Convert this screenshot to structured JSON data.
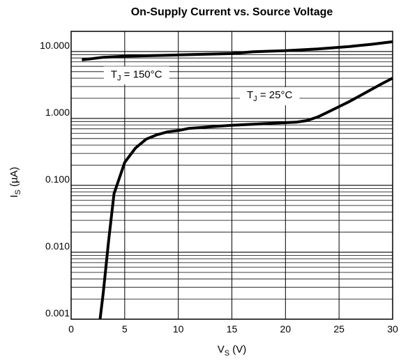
{
  "chart_data": {
    "type": "line",
    "title": "On-Supply Current vs. Source Voltage",
    "xlabel": {
      "main": "V",
      "sub": "S",
      "unit": " (V)"
    },
    "ylabel": {
      "main": "I",
      "sub": "S",
      "unit": " (µA)"
    },
    "xlim": [
      0,
      30
    ],
    "ylim": [
      0.001,
      20
    ],
    "yscale": "log",
    "grid": true,
    "x_ticks": [
      {
        "value": 0,
        "label": "0"
      },
      {
        "value": 5,
        "label": "5"
      },
      {
        "value": 10,
        "label": "10"
      },
      {
        "value": 15,
        "label": "15"
      },
      {
        "value": 20,
        "label": "20"
      },
      {
        "value": 25,
        "label": "25"
      },
      {
        "value": 30,
        "label": "30"
      }
    ],
    "y_ticks": [
      {
        "value": 0.001,
        "label": "0.001"
      },
      {
        "value": 0.01,
        "label": "0.010"
      },
      {
        "value": 0.1,
        "label": "0.100"
      },
      {
        "value": 1,
        "label": "1.000"
      },
      {
        "value": 10,
        "label": "10.000"
      }
    ],
    "series": [
      {
        "name": "TJ = 150°C",
        "label": {
          "main": "T",
          "sub": "J",
          "rest": " = 150°C",
          "x": 3.7,
          "y": 4.6
        },
        "x": [
          1,
          3,
          5,
          10,
          15,
          17,
          20,
          23,
          26,
          28,
          30
        ],
        "y": [
          7.5,
          8.2,
          8.5,
          8.9,
          9.3,
          9.9,
          10.3,
          10.9,
          11.9,
          12.8,
          14.0
        ]
      },
      {
        "name": "TJ = 25°C",
        "label": {
          "main": "T",
          "sub": "J",
          "rest": " = 25°C",
          "x": 16.4,
          "y": 2.25
        },
        "x": [
          2.7,
          3.0,
          3.5,
          4.0,
          5.0,
          6.0,
          7.0,
          8.0,
          9.0,
          10.0,
          11.0,
          13.0,
          15.0,
          17.0,
          19.0,
          21.0,
          22.0,
          23.0,
          24.0,
          25.0,
          26.0,
          27.0,
          28.0,
          29.0,
          30.0
        ],
        "y": [
          0.001,
          0.0025,
          0.015,
          0.075,
          0.22,
          0.36,
          0.49,
          0.57,
          0.63,
          0.66,
          0.71,
          0.75,
          0.79,
          0.82,
          0.85,
          0.88,
          0.93,
          1.05,
          1.25,
          1.5,
          1.8,
          2.2,
          2.7,
          3.3,
          4.0
        ]
      }
    ]
  }
}
